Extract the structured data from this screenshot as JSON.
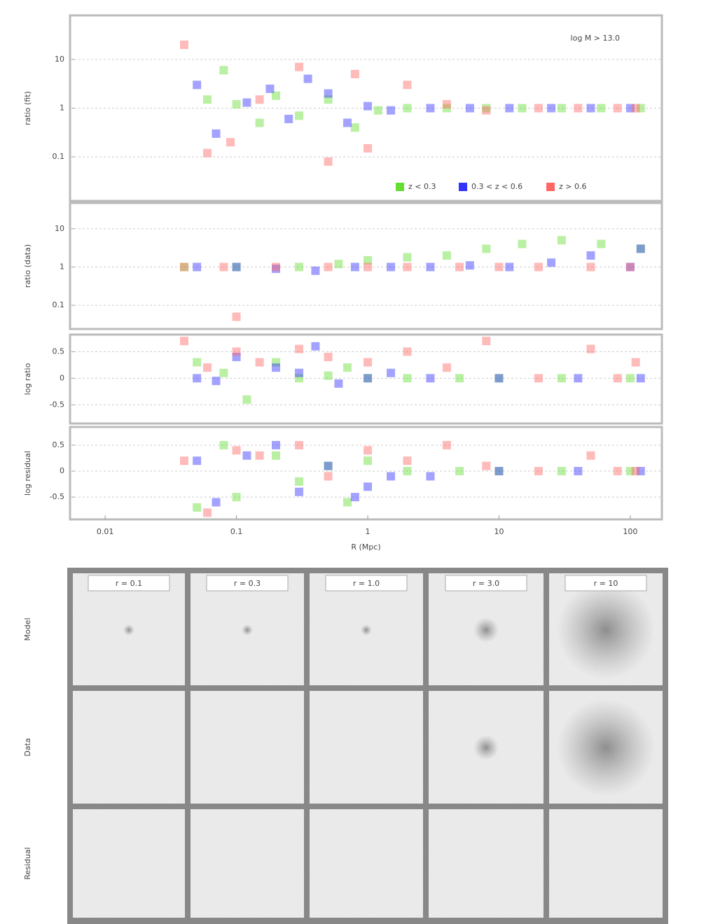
{
  "chart_data": [
    {
      "type": "scatter",
      "ylabel": "ratio (fit)",
      "log_x": true,
      "log_y": true,
      "grid": true,
      "annotation": "log M > 13.0",
      "legend": "lower right",
      "xlim": [
        0.0054,
        174
      ],
      "ylim": [
        0.0125,
        80
      ],
      "yticks": [
        10,
        1,
        0.1
      ],
      "series": [
        {
          "name": "z < 0.3",
          "color": "#66dd33",
          "x": [
            0.06,
            0.08,
            0.1,
            0.15,
            0.2,
            0.3,
            0.5,
            0.8,
            1.2,
            2,
            4,
            8,
            15,
            30,
            60,
            120
          ],
          "values": [
            1.5,
            6,
            1.2,
            0.5,
            1.8,
            0.7,
            1.5,
            0.4,
            0.9,
            1,
            1,
            1,
            1,
            1,
            1,
            1
          ]
        },
        {
          "name": "0.3 < z < 0.6",
          "color": "#3333ff",
          "x": [
            0.05,
            0.07,
            0.12,
            0.18,
            0.25,
            0.35,
            0.5,
            0.7,
            1,
            1.5,
            3,
            6,
            12,
            25,
            50,
            100
          ],
          "values": [
            3,
            0.3,
            1.3,
            2.5,
            0.6,
            4,
            2,
            0.5,
            1.1,
            0.9,
            1,
            1,
            1,
            1,
            1,
            1
          ]
        },
        {
          "name": "z > 0.6",
          "color": "#ff6666",
          "x": [
            0.04,
            0.06,
            0.09,
            0.15,
            0.3,
            0.5,
            0.8,
            1,
            2,
            4,
            8,
            20,
            40,
            80,
            110
          ],
          "values": [
            20,
            0.12,
            0.2,
            1.5,
            7,
            0.08,
            5,
            0.15,
            3,
            1.2,
            0.9,
            1,
            1,
            1,
            1
          ]
        }
      ]
    },
    {
      "type": "scatter",
      "ylabel": "ratio (data)",
      "log_x": true,
      "log_y": true,
      "grid": true,
      "xlim": [
        0.0054,
        174
      ],
      "ylim": [
        0.024,
        47
      ],
      "yticks": [
        10,
        1,
        0.1
      ],
      "series": [
        {
          "name": "z < 0.3",
          "color": "#66dd33",
          "x": [
            0.04,
            0.1,
            0.3,
            0.6,
            1,
            2,
            4,
            8,
            15,
            30,
            60,
            120
          ],
          "values": [
            1,
            1,
            1,
            1.2,
            1.5,
            1.8,
            2,
            3,
            4,
            5,
            4,
            3
          ]
        },
        {
          "name": "0.3 < z < 0.6",
          "color": "#3333ff",
          "x": [
            0.05,
            0.1,
            0.2,
            0.4,
            0.8,
            1.5,
            3,
            6,
            12,
            25,
            50,
            100,
            120
          ],
          "values": [
            1,
            1,
            0.9,
            0.8,
            1,
            1,
            1,
            1.1,
            1,
            1.3,
            2,
            1,
            3
          ]
        },
        {
          "name": "z > 0.6",
          "color": "#ff6666",
          "x": [
            0.04,
            0.08,
            0.1,
            0.2,
            0.5,
            1,
            2,
            5,
            10,
            20,
            50,
            100
          ],
          "values": [
            1,
            1,
            0.05,
            1,
            1,
            1,
            1,
            1,
            1,
            1,
            1,
            1
          ]
        }
      ]
    },
    {
      "type": "scatter",
      "ylabel": "log ratio",
      "log_x": true,
      "log_y": false,
      "grid": true,
      "xlim": [
        0.0054,
        174
      ],
      "ylim": [
        -0.85,
        0.82
      ],
      "yticks": [
        0.5,
        0,
        -0.5
      ],
      "series": [
        {
          "name": "z < 0.3",
          "color": "#66dd33",
          "x": [
            0.05,
            0.08,
            0.12,
            0.2,
            0.3,
            0.5,
            0.7,
            1,
            2,
            5,
            10,
            30,
            100
          ],
          "values": [
            0.3,
            0.1,
            -0.4,
            0.3,
            0,
            0.05,
            0.2,
            0,
            0,
            0,
            0,
            0,
            0
          ]
        },
        {
          "name": "0.3 < z < 0.6",
          "color": "#3333ff",
          "x": [
            0.05,
            0.07,
            0.1,
            0.2,
            0.3,
            0.4,
            0.6,
            1,
            1.5,
            3,
            10,
            40,
            120
          ],
          "values": [
            0,
            -0.05,
            0.4,
            0.2,
            0.1,
            0.6,
            -0.1,
            0,
            0.1,
            0,
            0,
            0,
            0
          ]
        },
        {
          "name": "z > 0.6",
          "color": "#ff6666",
          "x": [
            0.04,
            0.06,
            0.1,
            0.15,
            0.3,
            0.5,
            1,
            2,
            4,
            8,
            20,
            50,
            80,
            110
          ],
          "values": [
            0.7,
            0.2,
            0.5,
            0.3,
            0.55,
            0.4,
            0.3,
            0.5,
            0.2,
            0.7,
            0,
            0.55,
            0,
            0.3
          ]
        }
      ]
    },
    {
      "type": "scatter",
      "ylabel": "log residual",
      "xlabel": "R (Mpc)",
      "log_x": true,
      "log_y": false,
      "grid": true,
      "xlim": [
        0.0054,
        174
      ],
      "xticks": [
        0.01,
        0.1,
        1,
        10,
        100
      ],
      "ylim": [
        -0.93,
        0.85
      ],
      "yticks": [
        0.5,
        0,
        -0.5
      ],
      "series": [
        {
          "name": "z < 0.3",
          "color": "#66dd33",
          "x": [
            0.05,
            0.08,
            0.1,
            0.2,
            0.3,
            0.5,
            0.7,
            1,
            2,
            5,
            10,
            30,
            100
          ],
          "values": [
            -0.7,
            0.5,
            -0.5,
            0.3,
            -0.2,
            0.1,
            -0.6,
            0.2,
            0,
            0,
            0,
            0,
            0
          ]
        },
        {
          "name": "0.3 < z < 0.6",
          "color": "#3333ff",
          "x": [
            0.05,
            0.07,
            0.12,
            0.2,
            0.3,
            0.5,
            0.8,
            1,
            1.5,
            3,
            10,
            40,
            120
          ],
          "values": [
            0.2,
            -0.6,
            0.3,
            0.5,
            -0.4,
            0.1,
            -0.5,
            -0.3,
            -0.1,
            -0.1,
            0,
            0,
            0
          ]
        },
        {
          "name": "z > 0.6",
          "color": "#ff6666",
          "x": [
            0.04,
            0.06,
            0.1,
            0.15,
            0.3,
            0.5,
            1,
            2,
            4,
            8,
            20,
            50,
            80,
            110
          ],
          "values": [
            0.2,
            -0.8,
            0.4,
            0.3,
            0.5,
            -0.1,
            0.4,
            0.2,
            0.5,
            0.1,
            0,
            0.3,
            0,
            0
          ]
        }
      ]
    }
  ],
  "image_grid": {
    "row_labels": [
      "Model",
      "Data",
      "Residual"
    ],
    "column_titles": [
      "r = 0.1",
      "r = 0.3",
      "r = 1.0",
      "r = 3.0",
      "r = 10"
    ]
  }
}
